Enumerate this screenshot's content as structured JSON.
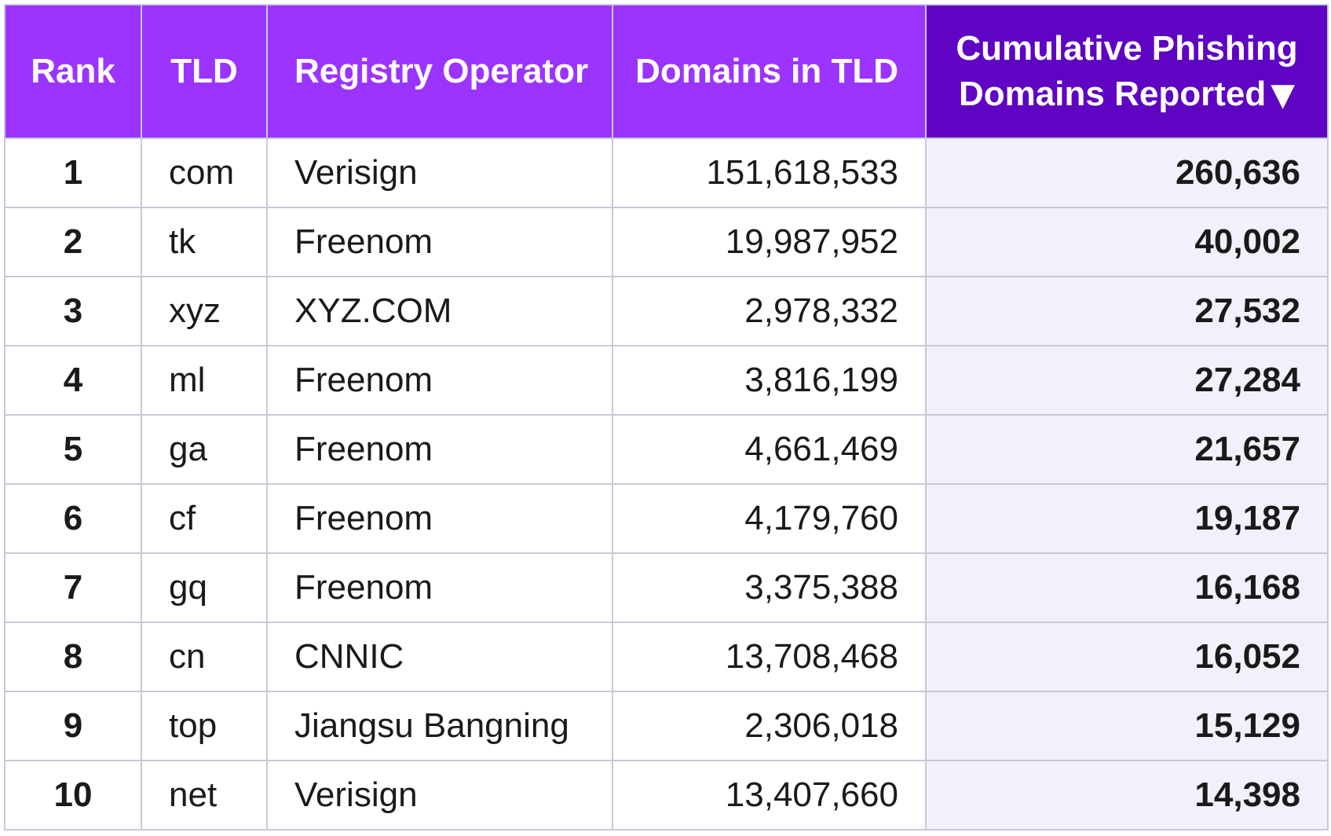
{
  "chart_data": {
    "type": "table",
    "columns": [
      {
        "key": "rank",
        "label": "Rank"
      },
      {
        "key": "tld",
        "label": "TLD"
      },
      {
        "key": "registry_operator",
        "label": "Registry Operator"
      },
      {
        "key": "domains_in_tld",
        "label": "Domains in TLD"
      },
      {
        "key": "cumulative_phishing",
        "label": "Cumulative Phishing Domains Reported",
        "sort": "descending",
        "sort_indicator": "▼"
      }
    ],
    "rows": [
      {
        "rank": "1",
        "tld": "com",
        "registry_operator": "Verisign",
        "domains_in_tld": "151,618,533",
        "cumulative_phishing": "260,636"
      },
      {
        "rank": "2",
        "tld": "tk",
        "registry_operator": "Freenom",
        "domains_in_tld": "19,987,952",
        "cumulative_phishing": "40,002"
      },
      {
        "rank": "3",
        "tld": "xyz",
        "registry_operator": "XYZ.COM",
        "domains_in_tld": "2,978,332",
        "cumulative_phishing": "27,532"
      },
      {
        "rank": "4",
        "tld": "ml",
        "registry_operator": "Freenom",
        "domains_in_tld": "3,816,199",
        "cumulative_phishing": "27,284"
      },
      {
        "rank": "5",
        "tld": "ga",
        "registry_operator": "Freenom",
        "domains_in_tld": "4,661,469",
        "cumulative_phishing": "21,657"
      },
      {
        "rank": "6",
        "tld": "cf",
        "registry_operator": "Freenom",
        "domains_in_tld": "4,179,760",
        "cumulative_phishing": "19,187"
      },
      {
        "rank": "7",
        "tld": "gq",
        "registry_operator": "Freenom",
        "domains_in_tld": "3,375,388",
        "cumulative_phishing": "16,168"
      },
      {
        "rank": "8",
        "tld": "cn",
        "registry_operator": "CNNIC",
        "domains_in_tld": "13,708,468",
        "cumulative_phishing": "16,052"
      },
      {
        "rank": "9",
        "tld": "top",
        "registry_operator": "Jiangsu Bangning",
        "domains_in_tld": "2,306,018",
        "cumulative_phishing": "15,129"
      },
      {
        "rank": "10",
        "tld": "net",
        "registry_operator": "Verisign",
        "domains_in_tld": "13,407,660",
        "cumulative_phishing": "14,398"
      }
    ],
    "colors": {
      "header": "#9b34ff",
      "header_sorted": "#5f04c2",
      "sorted_column_cells": "#f3effb",
      "grid": "#c7c9d6"
    }
  }
}
